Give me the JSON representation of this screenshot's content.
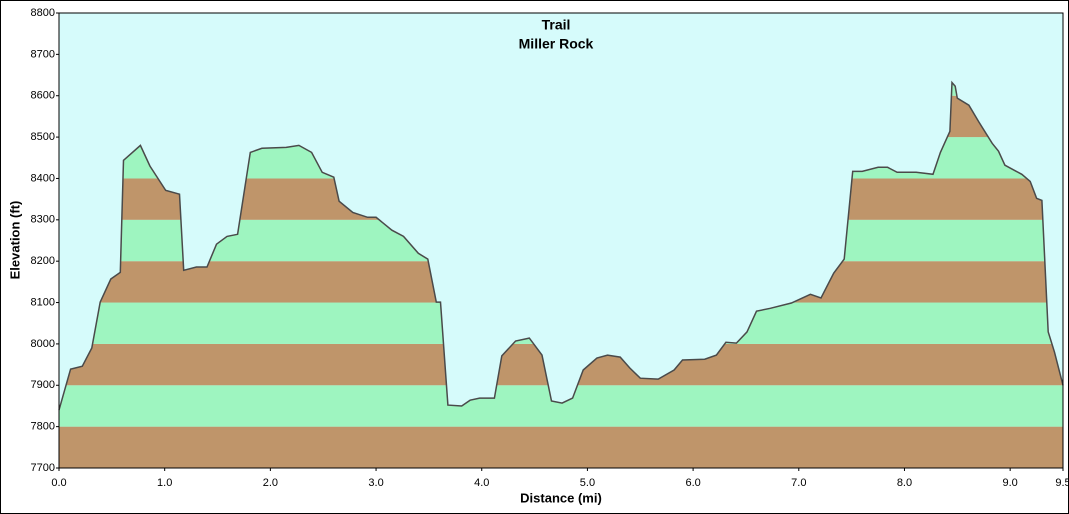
{
  "chart_data": {
    "type": "area",
    "title": "Trail",
    "subtitle": "Miller Rock",
    "x_label": "Distance   (mi)",
    "y_label": "Elevation (ft)",
    "background": "#d6fbfb",
    "line_color": "#4a4a4a",
    "band_colors": [
      "#bf956a",
      "#9ef5c0"
    ],
    "xlim": [
      0,
      9.5
    ],
    "ylim": [
      7700,
      8800
    ],
    "xticks": [
      {
        "value": 0,
        "label": "0.0"
      },
      {
        "value": 1,
        "label": "1.0"
      },
      {
        "value": 2,
        "label": "2.0"
      },
      {
        "value": 3,
        "label": "3.0"
      },
      {
        "value": 4,
        "label": "4.0"
      },
      {
        "value": 5,
        "label": "5.0"
      },
      {
        "value": 6,
        "label": "6.0"
      },
      {
        "value": 7,
        "label": "7.0"
      },
      {
        "value": 8,
        "label": "8.0"
      },
      {
        "value": 9,
        "label": "9.0"
      },
      9.5
    ],
    "yticks": [
      7700,
      7800,
      7900,
      8000,
      8100,
      8200,
      8300,
      8400,
      8500,
      8600,
      8700,
      8800
    ],
    "x": [
      0,
      0.04,
      0.11,
      0.22,
      0.31,
      0.39,
      0.49,
      0.58,
      0.61,
      0.77,
      0.86,
      1.01,
      1.14,
      1.18,
      1.3,
      1.4,
      1.49,
      1.59,
      1.69,
      1.81,
      1.92,
      2.15,
      2.27,
      2.39,
      2.49,
      2.6,
      2.65,
      2.78,
      2.92,
      3.0,
      3.15,
      3.26,
      3.4,
      3.49,
      3.57,
      3.61,
      3.68,
      3.81,
      3.89,
      3.98,
      4.12,
      4.19,
      4.32,
      4.45,
      4.57,
      4.66,
      4.76,
      4.86,
      4.96,
      5.09,
      5.19,
      5.31,
      5.4,
      5.5,
      5.67,
      5.82,
      5.9,
      6.11,
      6.22,
      6.31,
      6.41,
      6.51,
      6.6,
      6.73,
      6.93,
      7.11,
      7.21,
      7.33,
      7.43,
      7.51,
      7.6,
      7.75,
      7.84,
      7.93,
      8.11,
      8.27,
      8.34,
      8.43,
      8.45,
      8.48,
      8.5,
      8.61,
      8.7,
      8.83,
      8.89,
      8.95,
      9.11,
      9.19,
      9.25,
      9.3,
      9.36,
      9.42,
      9.5
    ],
    "values": [
      7840,
      7876,
      7939,
      7946,
      7990,
      8101,
      8157,
      8173,
      8444,
      8480,
      8430,
      8371,
      8362,
      8178,
      8186,
      8186,
      8241,
      8260,
      8265,
      8463,
      8473,
      8475,
      8480,
      8463,
      8415,
      8403,
      8345,
      8318,
      8306,
      8306,
      8275,
      8260,
      8219,
      8205,
      8101,
      8101,
      7852,
      7850,
      7864,
      7869,
      7869,
      7971,
      8007,
      8014,
      7973,
      7862,
      7857,
      7869,
      7937,
      7966,
      7973,
      7968,
      7942,
      7917,
      7915,
      7937,
      7961,
      7963,
      7973,
      8004,
      8002,
      8029,
      8079,
      8086,
      8099,
      8120,
      8111,
      8171,
      8205,
      8417,
      8417,
      8427,
      8427,
      8415,
      8415,
      8410,
      8463,
      8514,
      8632,
      8623,
      8594,
      8577,
      8538,
      8485,
      8466,
      8432,
      8410,
      8393,
      8352,
      8347,
      8029,
      7980,
      7900
    ]
  }
}
